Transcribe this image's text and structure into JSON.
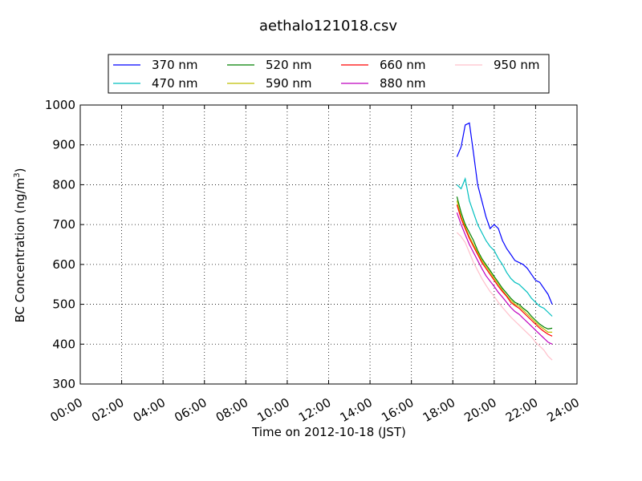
{
  "chart_data": {
    "type": "line",
    "title": "aethalo121018.csv",
    "xlabel": "Time on 2012-10-18 (JST)",
    "ylabel_main": "BC Concentration (ng/m",
    "ylabel_sup": "3",
    "ylabel_tail": ")",
    "xlim_hours": [
      0,
      24
    ],
    "ylim": [
      300,
      1000
    ],
    "grid": true,
    "legend_position": "top-center",
    "x_ticks": [
      "00:00",
      "02:00",
      "04:00",
      "06:00",
      "08:00",
      "10:00",
      "12:00",
      "14:00",
      "16:00",
      "18:00",
      "20:00",
      "22:00",
      "24:00"
    ],
    "y_ticks": [
      "300",
      "400",
      "500",
      "600",
      "700",
      "800",
      "900",
      "1000"
    ],
    "x_times": [
      "18:12",
      "18:24",
      "18:36",
      "18:48",
      "19:00",
      "19:12",
      "19:24",
      "19:36",
      "19:48",
      "20:00",
      "20:12",
      "20:24",
      "20:36",
      "20:48",
      "21:00",
      "21:12",
      "21:24",
      "21:36",
      "21:48",
      "22:00",
      "22:12",
      "22:24",
      "22:36",
      "22:48"
    ],
    "series": [
      {
        "name": "370 nm",
        "color": "#0000ff",
        "values": [
          870,
          895,
          950,
          955,
          880,
          800,
          760,
          720,
          690,
          700,
          690,
          660,
          640,
          625,
          610,
          605,
          600,
          590,
          575,
          560,
          555,
          540,
          525,
          500
        ]
      },
      {
        "name": "470 nm",
        "color": "#00bfbf",
        "values": [
          800,
          790,
          815,
          760,
          730,
          700,
          680,
          660,
          645,
          635,
          615,
          600,
          580,
          565,
          555,
          550,
          540,
          530,
          515,
          505,
          495,
          490,
          480,
          470
        ]
      },
      {
        "name": "520 nm",
        "color": "#008000",
        "values": [
          770,
          730,
          700,
          680,
          660,
          635,
          615,
          600,
          585,
          570,
          555,
          540,
          528,
          515,
          505,
          500,
          490,
          482,
          470,
          460,
          450,
          443,
          438,
          440
        ]
      },
      {
        "name": "590 nm",
        "color": "#bfbf00",
        "values": [
          760,
          720,
          695,
          670,
          650,
          630,
          610,
          595,
          580,
          565,
          550,
          535,
          522,
          510,
          500,
          495,
          485,
          475,
          465,
          455,
          445,
          438,
          430,
          430
        ]
      },
      {
        "name": "660 nm",
        "color": "#ff0000",
        "values": [
          750,
          715,
          690,
          665,
          645,
          625,
          605,
          590,
          575,
          560,
          545,
          532,
          520,
          505,
          497,
          490,
          480,
          470,
          460,
          450,
          440,
          432,
          425,
          420
        ]
      },
      {
        "name": "880 nm",
        "color": "#bf00bf",
        "values": [
          730,
          700,
          675,
          650,
          630,
          610,
          590,
          572,
          558,
          545,
          530,
          518,
          505,
          492,
          482,
          475,
          465,
          455,
          445,
          435,
          425,
          415,
          405,
          400
        ]
      },
      {
        "name": "950 nm",
        "color": "#ffc0cb",
        "values": [
          680,
          670,
          655,
          630,
          605,
          585,
          565,
          548,
          532,
          520,
          505,
          492,
          480,
          468,
          458,
          448,
          438,
          428,
          418,
          405,
          395,
          385,
          370,
          360
        ]
      }
    ]
  }
}
